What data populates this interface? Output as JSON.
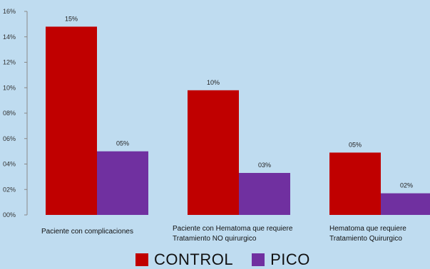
{
  "chart_data": {
    "type": "bar",
    "categories": [
      "Paciente con complicaciones",
      "Paciente con Hematoma que requiere Tratamiento NO quirurgico",
      "Hematoma que requiere Tratamiento  Quirurgico"
    ],
    "category_lines": [
      [
        "Paciente con complicaciones"
      ],
      [
        "Paciente con Hematoma que requiere",
        "Tratamiento NO quirurgico"
      ],
      [
        "Hematoma que requiere",
        "Tratamiento  Quirurgico"
      ]
    ],
    "series": [
      {
        "name": "CONTROL",
        "values": [
          14.8,
          9.8,
          4.9
        ],
        "labels": [
          "15%",
          "10%",
          "05%"
        ],
        "color": "#c00000"
      },
      {
        "name": "PICO",
        "values": [
          5.0,
          3.3,
          1.7
        ],
        "labels": [
          "05%",
          "03%",
          "02%"
        ],
        "color": "#7030a0"
      }
    ],
    "ylim": [
      0,
      16
    ],
    "yticks": [
      0,
      2,
      4,
      6,
      8,
      10,
      12,
      14,
      16
    ],
    "ytick_labels": [
      "00%",
      "02%",
      "04%",
      "06%",
      "08%",
      "10%",
      "12%",
      "14%",
      "16%"
    ],
    "grid": false,
    "legend_position": "bottom"
  }
}
